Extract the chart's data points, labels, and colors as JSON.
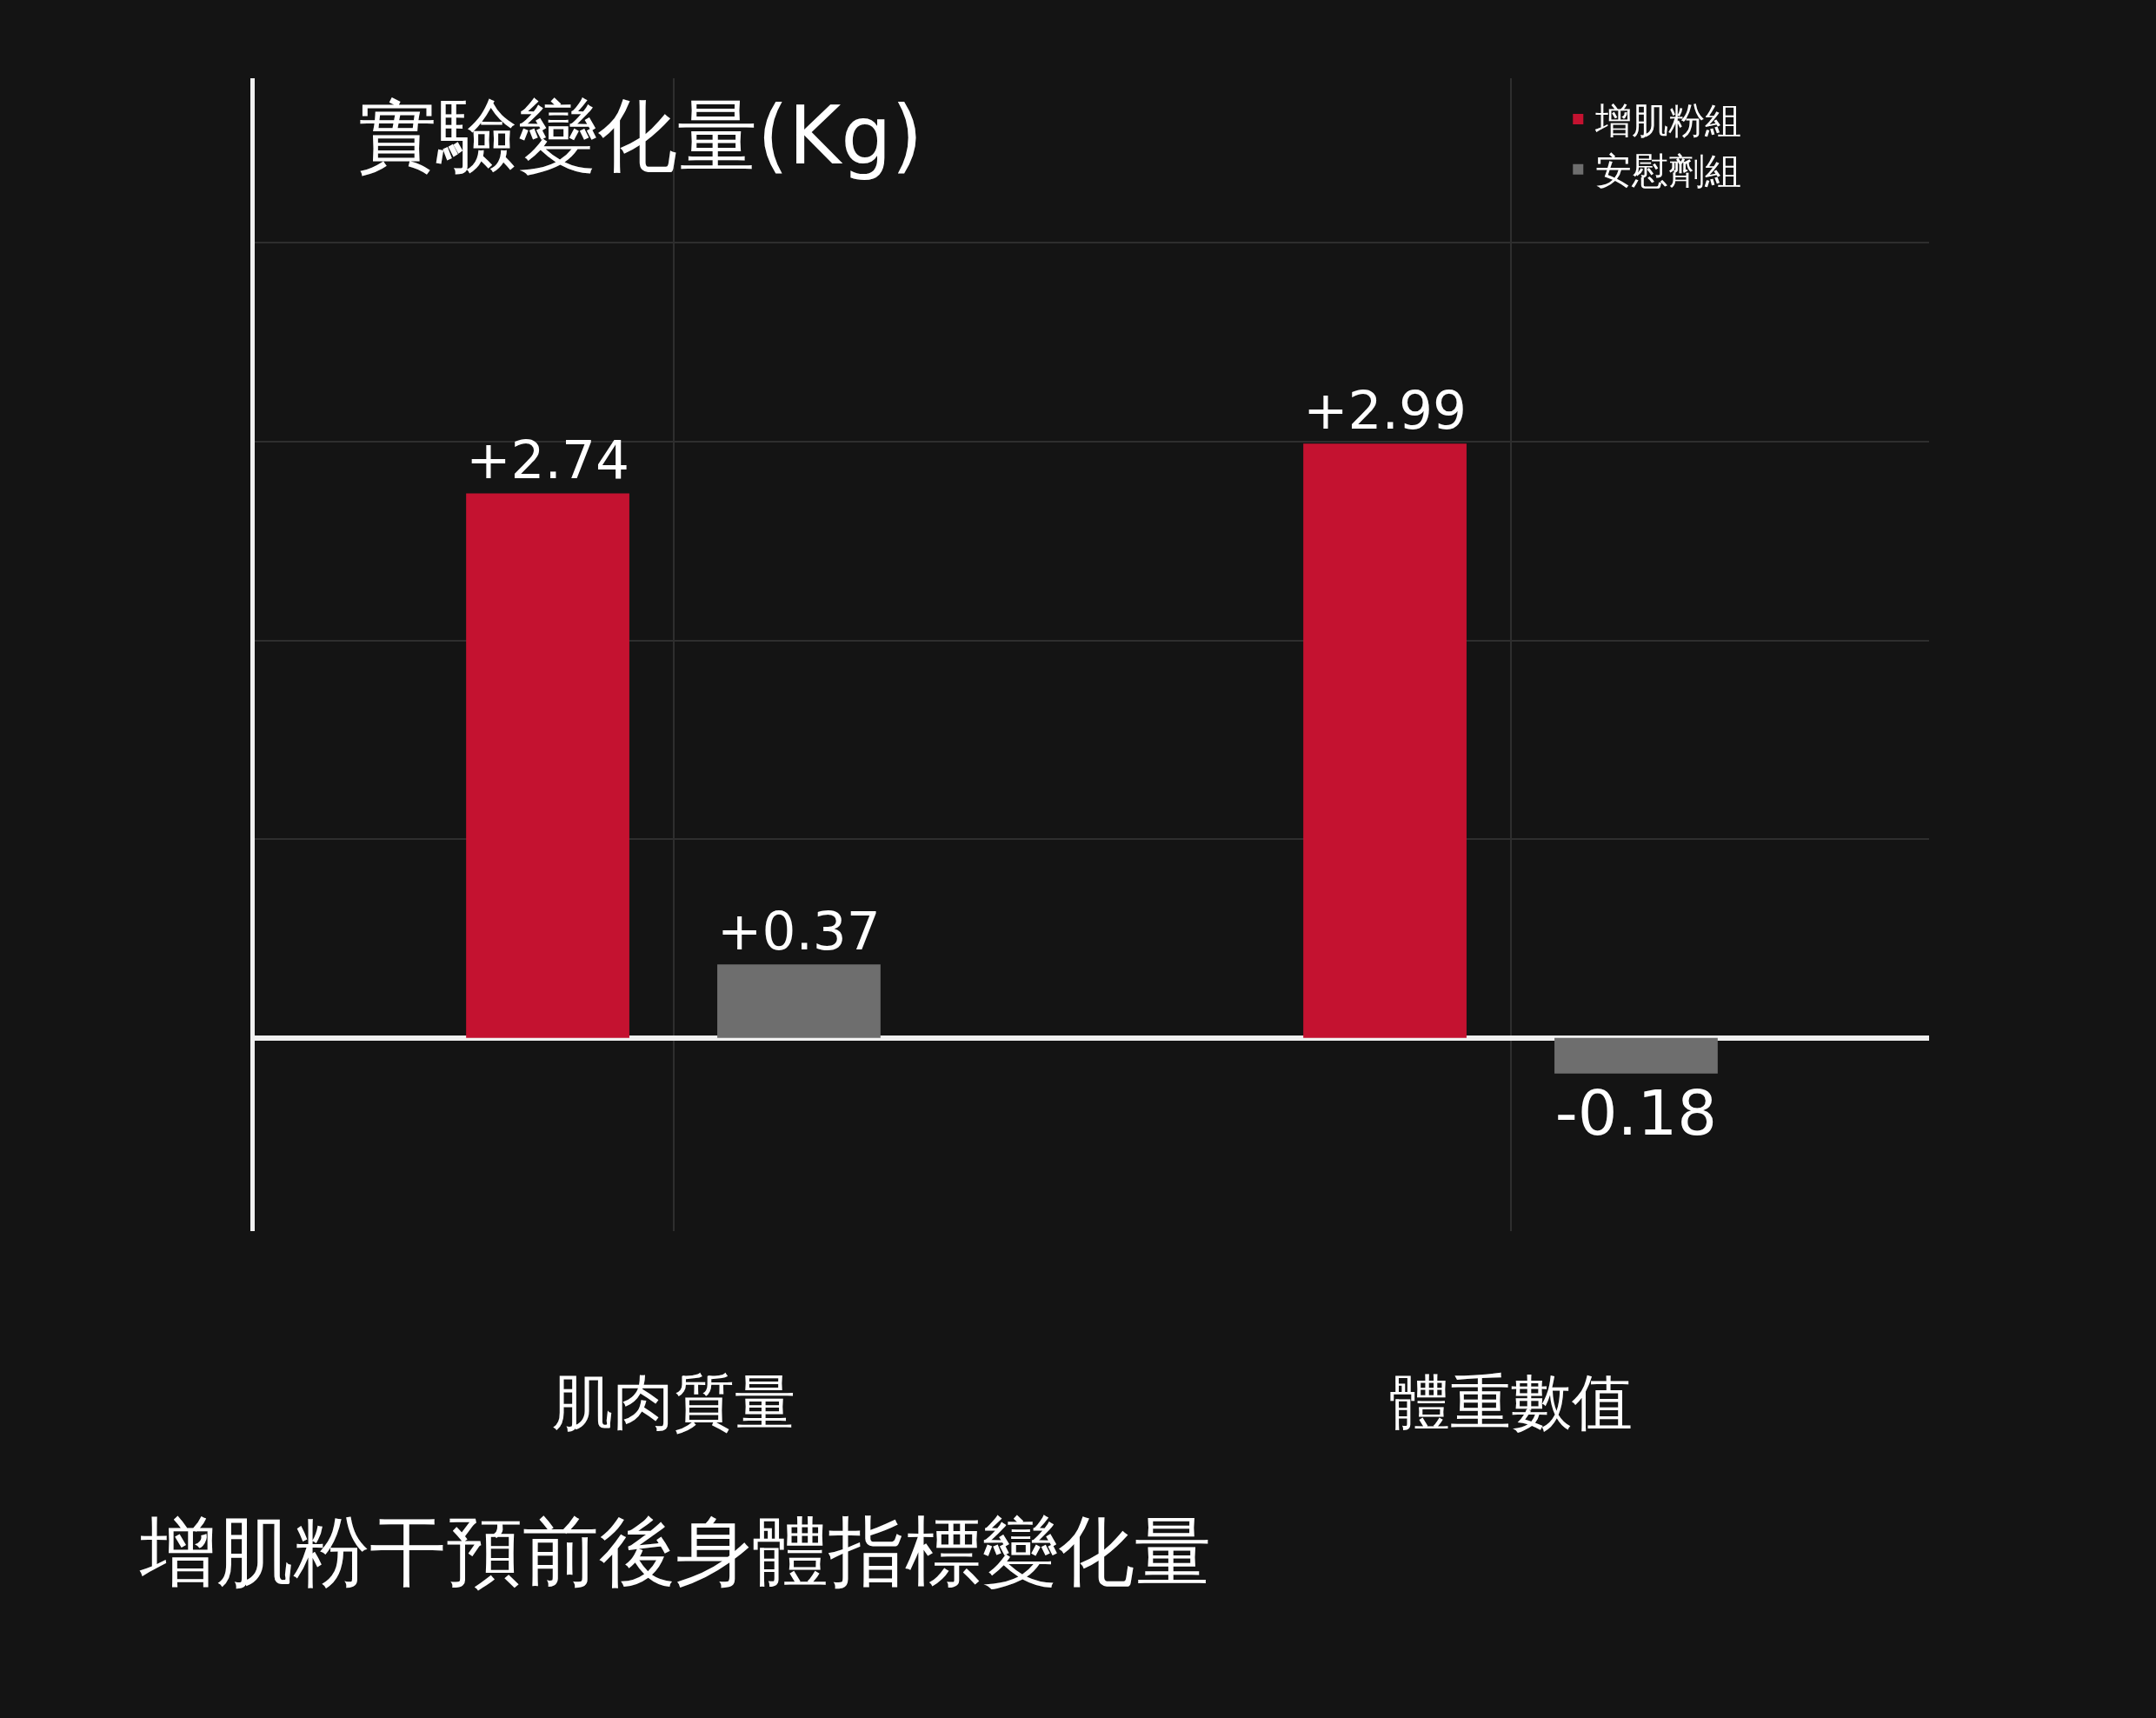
{
  "chart_data": {
    "type": "bar",
    "title": "增肌粉干預前後身體指標變化量",
    "ylabel": "實驗變化量(Kg)",
    "categories": [
      "肌肉質量",
      "體重數值"
    ],
    "series": [
      {
        "name": "增肌粉組",
        "color": "#c41230",
        "values": [
          2.74,
          2.99
        ],
        "value_labels": [
          "+2.74",
          "+2.99"
        ]
      },
      {
        "name": "安慰劑組",
        "color": "#6e6e6e",
        "values": [
          0.37,
          -0.18
        ],
        "value_labels": [
          "+0.37",
          "-0.18"
        ]
      }
    ],
    "grid": true,
    "legend": "top right",
    "tick_labels": "x"
  }
}
